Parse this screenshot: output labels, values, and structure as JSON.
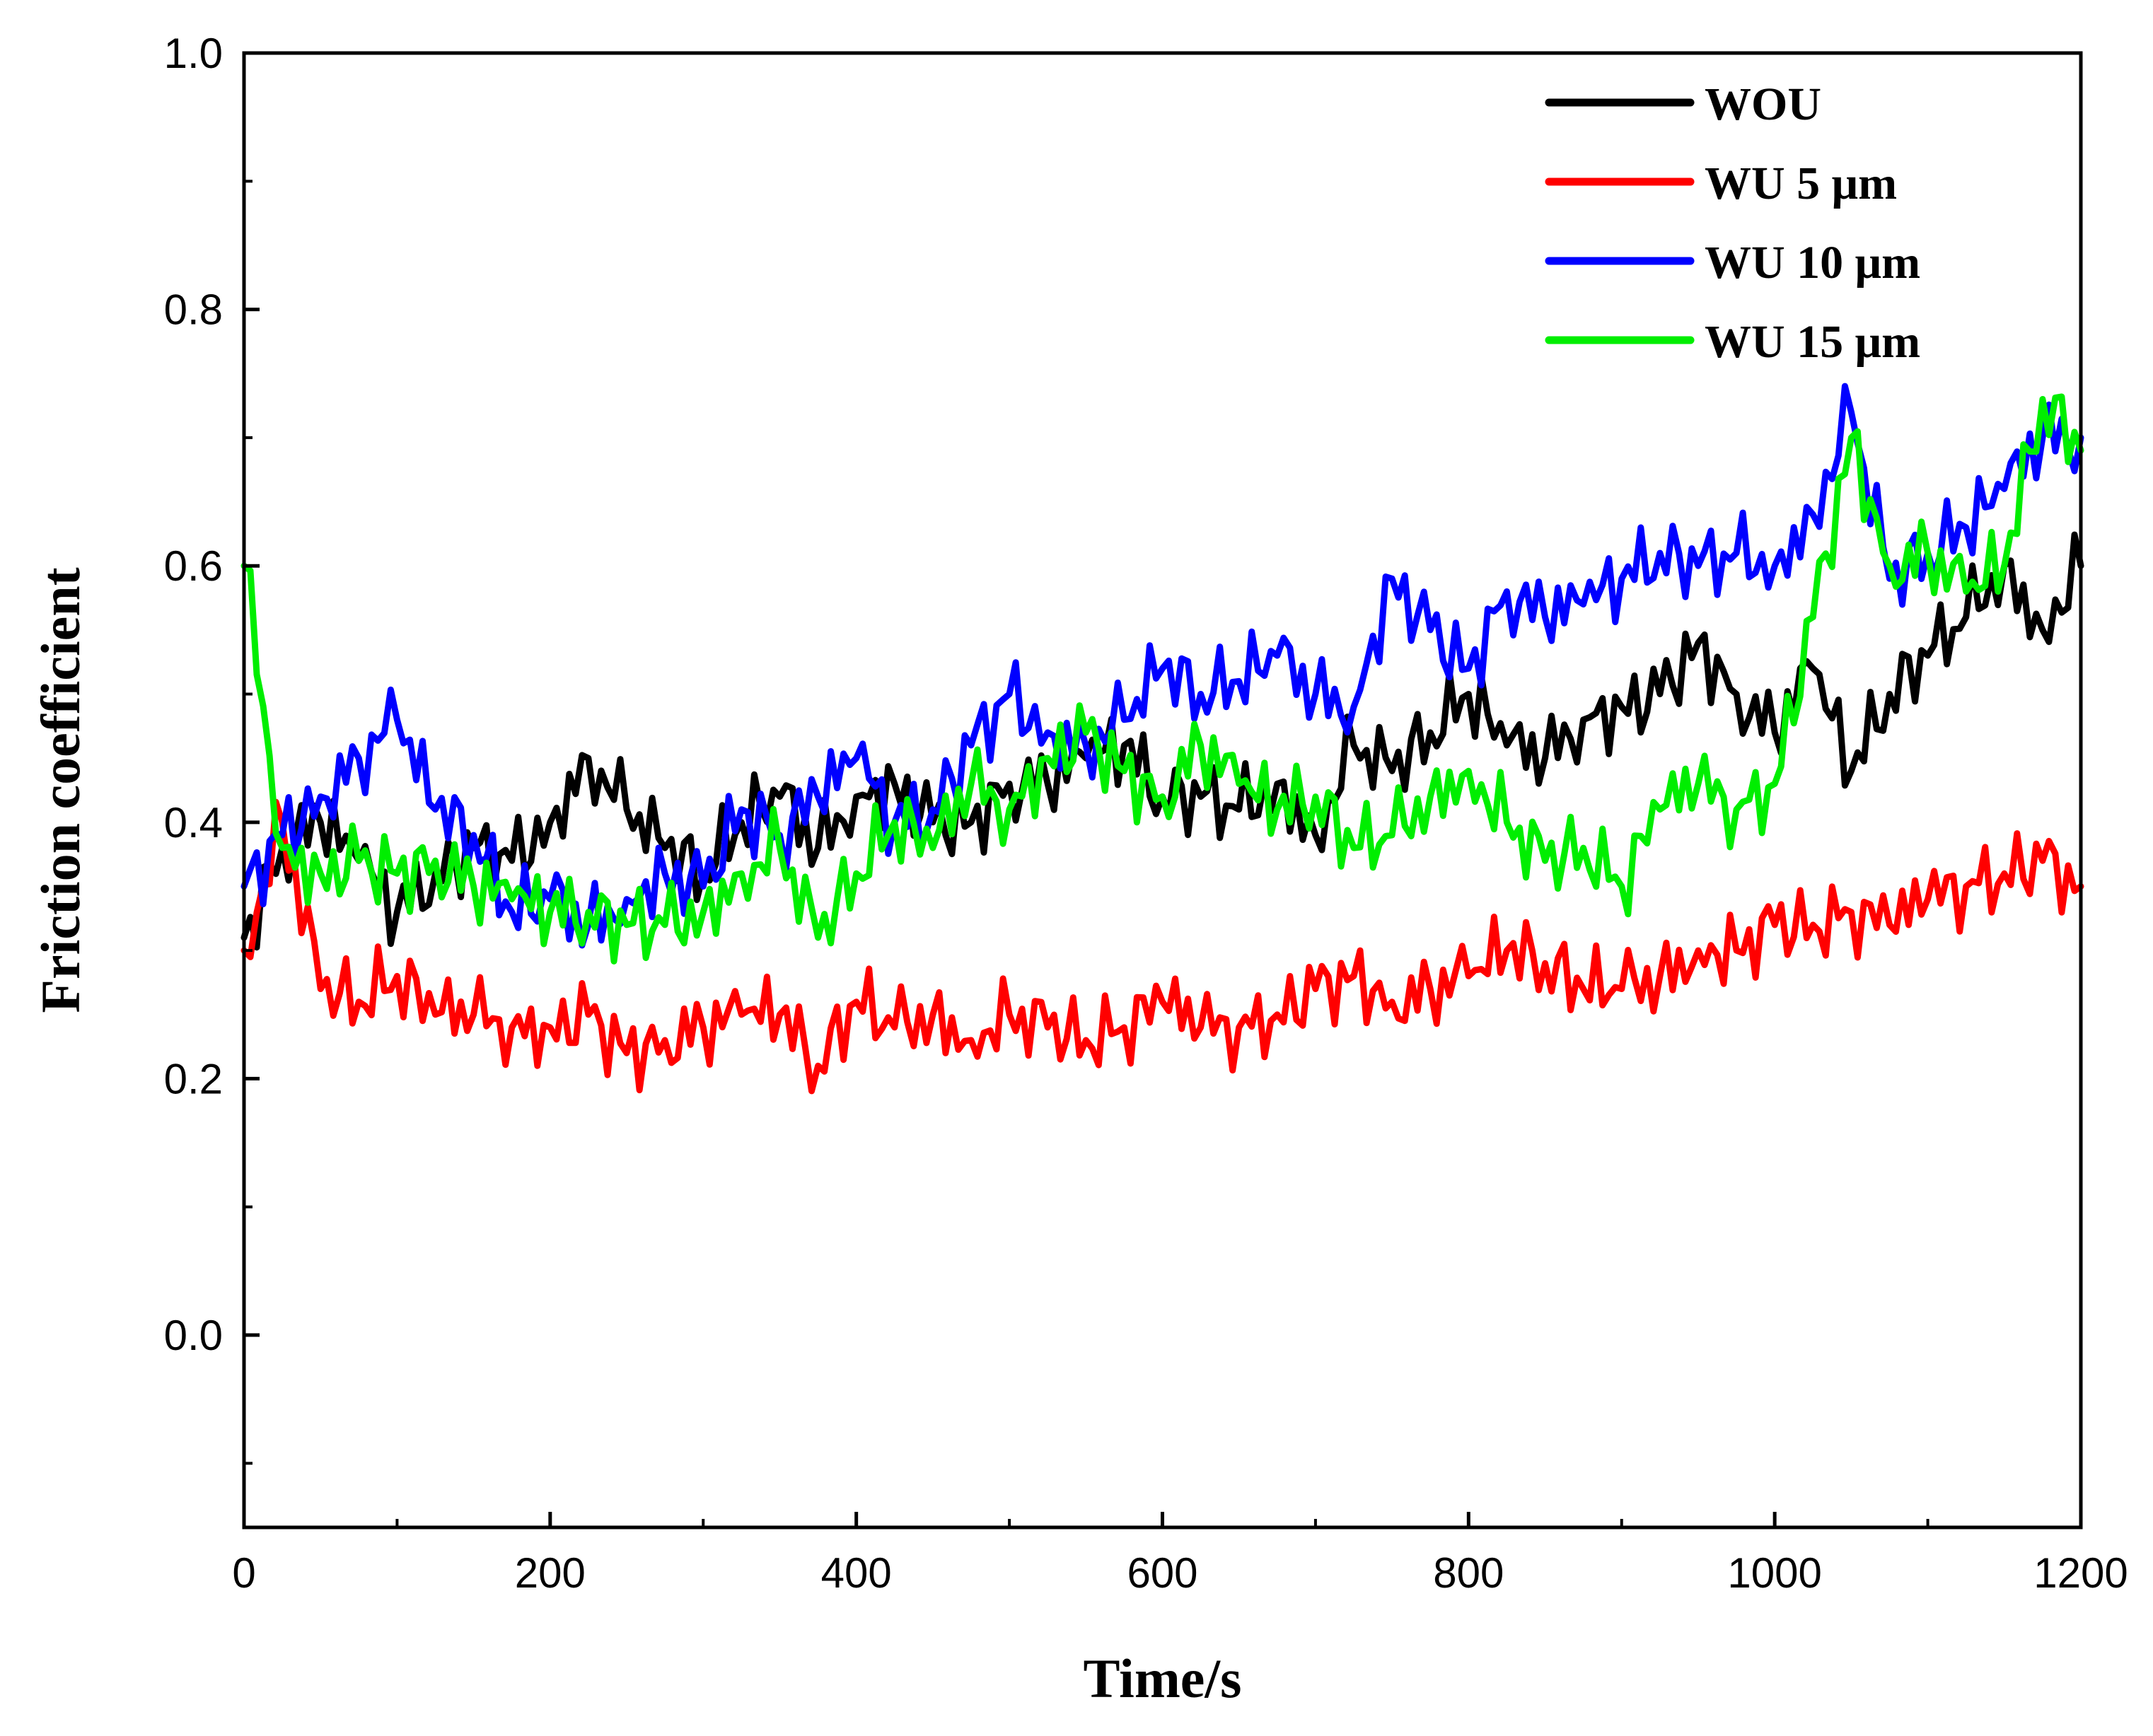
{
  "chart_data": {
    "type": "line",
    "title": "",
    "xlabel": "Time/s",
    "ylabel": "Friction coefficient",
    "xlim": [
      0,
      1200
    ],
    "ylim": [
      -0.15,
      1.0
    ],
    "xticks": [
      0,
      200,
      400,
      600,
      800,
      1000,
      1200
    ],
    "xtick_labels": [
      "0",
      "200",
      "400",
      "600",
      "800",
      "1000",
      "1200"
    ],
    "yticks": [
      0.0,
      0.2,
      0.4,
      0.6,
      0.8,
      1.0
    ],
    "ytick_labels": [
      "0.0",
      "0.2",
      "0.4",
      "0.6",
      "0.8",
      "1.0"
    ],
    "grid": false,
    "legend_position": "top-right",
    "x": [
      0,
      25,
      50,
      75,
      100,
      125,
      150,
      175,
      200,
      225,
      250,
      275,
      300,
      325,
      350,
      375,
      400,
      425,
      450,
      475,
      500,
      525,
      550,
      575,
      600,
      625,
      650,
      675,
      700,
      725,
      750,
      775,
      800,
      825,
      850,
      875,
      900,
      925,
      950,
      975,
      1000,
      1025,
      1050,
      1075,
      1100,
      1125,
      1150,
      1175,
      1200
    ],
    "series": [
      {
        "name": "WOU",
        "color": "#000000",
        "values": [
          0.31,
          0.38,
          0.4,
          0.37,
          0.33,
          0.36,
          0.38,
          0.37,
          0.4,
          0.45,
          0.41,
          0.38,
          0.36,
          0.4,
          0.42,
          0.38,
          0.42,
          0.43,
          0.4,
          0.4,
          0.43,
          0.43,
          0.45,
          0.46,
          0.42,
          0.42,
          0.41,
          0.43,
          0.39,
          0.46,
          0.44,
          0.47,
          0.5,
          0.46,
          0.45,
          0.48,
          0.49,
          0.5,
          0.54,
          0.5,
          0.47,
          0.52,
          0.44,
          0.5,
          0.53,
          0.56,
          0.6,
          0.55,
          0.6
        ]
      },
      {
        "name": "WU 5 μm",
        "color": "#ff0000",
        "values": [
          0.3,
          0.4,
          0.27,
          0.26,
          0.28,
          0.25,
          0.25,
          0.24,
          0.24,
          0.25,
          0.22,
          0.23,
          0.24,
          0.25,
          0.25,
          0.21,
          0.26,
          0.24,
          0.25,
          0.23,
          0.25,
          0.24,
          0.23,
          0.24,
          0.26,
          0.24,
          0.24,
          0.25,
          0.27,
          0.28,
          0.26,
          0.27,
          0.28,
          0.3,
          0.29,
          0.27,
          0.27,
          0.28,
          0.3,
          0.3,
          0.32,
          0.32,
          0.33,
          0.32,
          0.34,
          0.35,
          0.36,
          0.37,
          0.35
        ]
      },
      {
        "name": "WU 10 μm",
        "color": "#0000ff",
        "values": [
          0.35,
          0.39,
          0.42,
          0.45,
          0.48,
          0.41,
          0.39,
          0.33,
          0.34,
          0.32,
          0.34,
          0.36,
          0.35,
          0.41,
          0.39,
          0.42,
          0.45,
          0.4,
          0.41,
          0.46,
          0.5,
          0.47,
          0.46,
          0.48,
          0.52,
          0.5,
          0.51,
          0.53,
          0.5,
          0.49,
          0.59,
          0.55,
          0.52,
          0.58,
          0.56,
          0.57,
          0.59,
          0.61,
          0.6,
          0.61,
          0.6,
          0.64,
          0.72,
          0.59,
          0.61,
          0.63,
          0.66,
          0.7,
          0.7
        ]
      },
      {
        "name": "WU 15 μm",
        "color": "#00ee00",
        "values": [
          0.6,
          0.38,
          0.36,
          0.37,
          0.36,
          0.37,
          0.35,
          0.34,
          0.33,
          0.33,
          0.32,
          0.32,
          0.33,
          0.36,
          0.38,
          0.31,
          0.36,
          0.4,
          0.38,
          0.43,
          0.41,
          0.45,
          0.47,
          0.44,
          0.42,
          0.46,
          0.43,
          0.41,
          0.42,
          0.38,
          0.39,
          0.42,
          0.44,
          0.4,
          0.37,
          0.38,
          0.35,
          0.41,
          0.43,
          0.41,
          0.43,
          0.56,
          0.7,
          0.6,
          0.61,
          0.58,
          0.6,
          0.73,
          0.69
        ]
      }
    ]
  }
}
